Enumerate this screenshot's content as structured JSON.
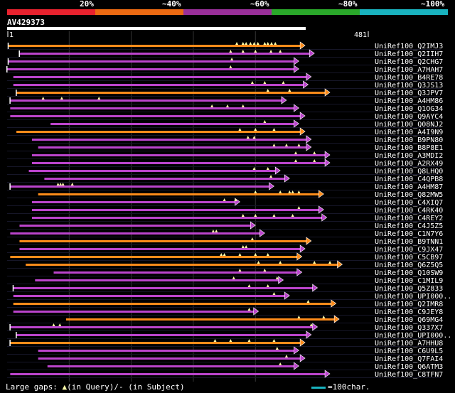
{
  "legend": {
    "labels": [
      "20%",
      "~40%",
      "~60%",
      "~80%",
      "~100%"
    ],
    "colors": [
      "#e8222e",
      "#ec6a12",
      "#9a2f9a",
      "#2aa82a",
      "#19b3bf"
    ]
  },
  "query": {
    "name": "AV429373",
    "start_label": "1",
    "end_label": "481",
    "length": 481
  },
  "colors": {
    "orange": "#ff8c1a",
    "purple": "#bb44cc",
    "gap": "#ffffaa",
    "ruler": "#ffffff"
  },
  "footer": {
    "large_gaps_prefix": "Large gaps: ",
    "large_gaps_middle": "(in Query)/- (in Subject)",
    "scale_label": "=100char."
  },
  "chart_data": {
    "type": "alignment-overview",
    "query_length": 481,
    "hits": [
      {
        "name": "UniRef100_Q2IMJ3",
        "color": "orange",
        "start": 2,
        "end": 480,
        "gaps": [
          370,
          380,
          385,
          392,
          398,
          404,
          415,
          420,
          426,
          432
        ],
        "left_tick": true
      },
      {
        "name": "UniRef100_Q2IIH7",
        "color": "purple",
        "start": 20,
        "end": 495,
        "gaps": [
          360,
          380,
          400,
          425,
          440
        ],
        "left_tick": true
      },
      {
        "name": "UniRef100_Q2CHG7",
        "color": "purple",
        "start": 2,
        "end": 470,
        "gaps": [
          362
        ],
        "left_tick": true
      },
      {
        "name": "UniRef100_A7HAH7",
        "color": "purple",
        "start": 0,
        "end": 470,
        "gaps": [
          360
        ],
        "left_tick": true
      },
      {
        "name": "UniRef100_B4RE78",
        "color": "purple",
        "start": 10,
        "end": 490,
        "gaps": []
      },
      {
        "name": "UniRef100_Q3JS13",
        "color": "purple",
        "start": 10,
        "end": 485,
        "gaps": [
          395,
          415,
          445
        ]
      },
      {
        "name": "UniRef100_Q3JPV7",
        "color": "orange",
        "start": 15,
        "end": 520,
        "gaps": [
          420,
          455
        ],
        "left_tick": true
      },
      {
        "name": "UniRef100_A4HM86",
        "color": "purple",
        "start": 5,
        "end": 450,
        "gaps": [
          58,
          88,
          148
        ],
        "left_tick": true
      },
      {
        "name": "UniRef100_Q1OG34",
        "color": "purple",
        "start": 5,
        "end": 470,
        "gaps": [
          330,
          355,
          380
        ]
      },
      {
        "name": "UniRef100_Q9AYC4",
        "color": "purple",
        "start": 5,
        "end": 480,
        "gaps": []
      },
      {
        "name": "UniRef100_Q08NJ2",
        "color": "purple",
        "start": 70,
        "end": 470,
        "gaps": [
          415
        ]
      },
      {
        "name": "UniRef100_A4I9N9",
        "color": "orange",
        "start": 15,
        "end": 480,
        "gaps": [
          375,
          400,
          430
        ]
      },
      {
        "name": "UniRef100_B9PN80",
        "color": "purple",
        "start": 40,
        "end": 490,
        "gaps": [
          388,
          398
        ]
      },
      {
        "name": "UniRef100_B8P8E1",
        "color": "purple",
        "start": 50,
        "end": 490,
        "gaps": [
          430,
          450,
          470
        ]
      },
      {
        "name": "UniRef100_A3MDI2",
        "color": "purple",
        "start": 40,
        "end": 520,
        "gaps": [
          465,
          495
        ]
      },
      {
        "name": "UniRef100_A2RX49",
        "color": "purple",
        "start": 40,
        "end": 520,
        "gaps": [
          465,
          495
        ]
      },
      {
        "name": "UniRef100_Q8LHQ0",
        "color": "purple",
        "start": 35,
        "end": 440,
        "gaps": [
          398,
          420
        ]
      },
      {
        "name": "UniRef100_C4QPB8",
        "color": "purple",
        "start": 60,
        "end": 455,
        "gaps": [
          425
        ]
      },
      {
        "name": "UniRef100_A4HM87",
        "color": "purple",
        "start": 5,
        "end": 430,
        "gaps": [
          82,
          86,
          90,
          105
        ],
        "left_tick": true
      },
      {
        "name": "UniRef100_Q82MW5",
        "color": "orange",
        "start": 50,
        "end": 510,
        "gaps": [
          400,
          440,
          455,
          460,
          470
        ]
      },
      {
        "name": "UniRef100_C4XIQ7",
        "color": "purple",
        "start": 40,
        "end": 375,
        "gaps": [
          350,
          368
        ]
      },
      {
        "name": "UniRef100_C4RK40",
        "color": "purple",
        "start": 40,
        "end": 510,
        "gaps": [
          470
        ]
      },
      {
        "name": "UniRef100_C4REY2",
        "color": "purple",
        "start": 40,
        "end": 515,
        "gaps": [
          380,
          400,
          430,
          460
        ]
      },
      {
        "name": "UniRef100_C4J5Z5",
        "color": "purple",
        "start": 20,
        "end": 400,
        "gaps": []
      },
      {
        "name": "UniRef100_C1N7Y6",
        "color": "purple",
        "start": 5,
        "end": 415,
        "gaps": [
          332,
          337
        ]
      },
      {
        "name": "UniRef100_B9TNN1",
        "color": "orange",
        "start": 20,
        "end": 490,
        "gaps": [
          395
        ]
      },
      {
        "name": "UniRef100_C9JX47",
        "color": "purple",
        "start": 20,
        "end": 480,
        "gaps": [
          380,
          385
        ]
      },
      {
        "name": "UniRef100_C5CB97",
        "color": "orange",
        "start": 5,
        "end": 475,
        "gaps": [
          345,
          350,
          375,
          400,
          420
        ]
      },
      {
        "name": "UniRef100_Q6Z5Q5",
        "color": "orange",
        "start": 30,
        "end": 540,
        "gaps": [
          405,
          440,
          495,
          520
        ]
      },
      {
        "name": "UniRef100_Q10SW9",
        "color": "purple",
        "start": 75,
        "end": 475,
        "gaps": [
          375,
          415
        ]
      },
      {
        "name": "UniRef100_C1MIL9",
        "color": "purple",
        "start": 45,
        "end": 445,
        "gaps": [
          365,
          435
        ]
      },
      {
        "name": "UniRef100_Q5Z833",
        "color": "purple",
        "start": 10,
        "end": 500,
        "gaps": [
          390,
          420
        ],
        "left_tick": true
      },
      {
        "name": "UniRef100_UPI000..",
        "color": "purple",
        "start": 10,
        "end": 455,
        "gaps": [
          430
        ]
      },
      {
        "name": "UniRef100_Q2IMR8",
        "color": "orange",
        "start": 10,
        "end": 530,
        "gaps": [
          485
        ]
      },
      {
        "name": "UniRef100_C9JEY8",
        "color": "purple",
        "start": 10,
        "end": 405,
        "gaps": [
          390
        ]
      },
      {
        "name": "UniRef100_Q69MG4",
        "color": "orange",
        "start": 95,
        "end": 535,
        "gaps": [
          470,
          510
        ]
      },
      {
        "name": "UniRef100_Q337X7",
        "color": "purple",
        "start": 5,
        "end": 500,
        "gaps": [
          75,
          85,
          490
        ],
        "left_tick": true
      },
      {
        "name": "UniRef100_UPI000..",
        "color": "purple",
        "start": 15,
        "end": 490,
        "gaps": [],
        "left_tick": true
      },
      {
        "name": "UniRef100_A7HHU8",
        "color": "orange",
        "start": 5,
        "end": 480,
        "gaps": [
          335,
          360,
          390,
          430
        ],
        "left_tick": true
      },
      {
        "name": "UniRef100_C6U9L5",
        "color": "purple",
        "start": 50,
        "end": 470,
        "gaps": [
          435
        ]
      },
      {
        "name": "UniRef100_Q7FAI4",
        "color": "purple",
        "start": 50,
        "end": 480,
        "gaps": [
          450
        ]
      },
      {
        "name": "UniRef100_Q6ATM3",
        "color": "purple",
        "start": 65,
        "end": 470,
        "gaps": [
          440
        ]
      },
      {
        "name": "UniRef100_C8TFN7",
        "color": "purple",
        "start": 5,
        "end": 520,
        "gaps": []
      }
    ]
  }
}
